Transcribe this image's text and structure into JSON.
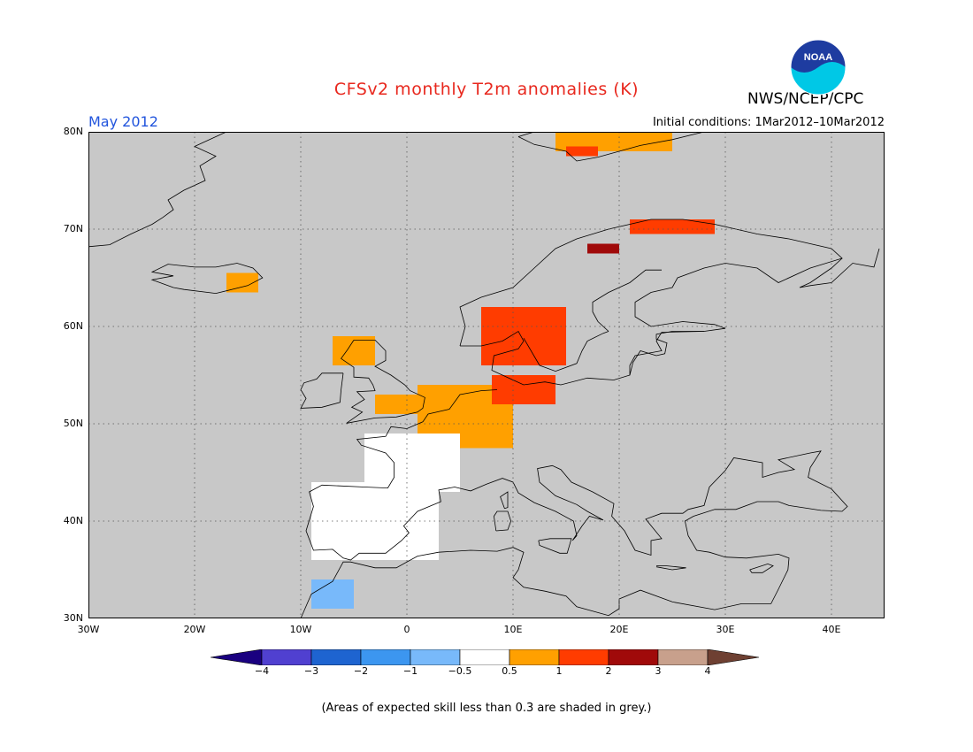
{
  "header": {
    "title": "CFSv2 monthly T2m anomalies (K)",
    "agency": "NWS/NCEP/CPC",
    "logo_text": "NOAA",
    "month": "May 2012",
    "initial_conditions": "Initial conditions: 1Mar2012–10Mar2012"
  },
  "colors": {
    "title": "#e8281e",
    "month": "#2255dd",
    "skill_grey": "#c8c8c8",
    "land_outline": "#000000"
  },
  "axes": {
    "lat_labels": [
      "80N",
      "70N",
      "60N",
      "50N",
      "40N",
      "30N"
    ],
    "lon_labels": [
      "30W",
      "20W",
      "10W",
      "0",
      "10E",
      "20E",
      "30E",
      "40E"
    ],
    "lon_range": [
      -30,
      45
    ],
    "lat_range": [
      30,
      80
    ],
    "grid": "dotted"
  },
  "colorbar": {
    "colors": [
      "#1a0080",
      "#5040d0",
      "#1e64d0",
      "#3c96f0",
      "#78b9fa",
      "#ffffff",
      "#ffa000",
      "#ff3c00",
      "#a00a0a",
      "#c8a08c",
      "#6e4032"
    ],
    "labels": [
      "−4",
      "−3",
      "−2",
      "−1",
      "−0.5",
      "0.5",
      "1",
      "2",
      "3",
      "4"
    ]
  },
  "footnote": "(Areas of expected skill less than 0.3 are shaded in grey.)",
  "anomaly_regions": [
    {
      "name": "svalbard",
      "category": "0.5-1",
      "lon": [
        14,
        25
      ],
      "lat": [
        78,
        80
      ]
    },
    {
      "name": "svalbard-south",
      "category": "1-2",
      "lon": [
        15,
        18
      ],
      "lat": [
        77.5,
        78.5
      ]
    },
    {
      "name": "iceland",
      "category": "0.5-1",
      "lon": [
        -17,
        -14
      ],
      "lat": [
        63.5,
        65.5
      ]
    },
    {
      "name": "north-norway-finnmark",
      "category": "1-2",
      "lon": [
        21,
        29
      ],
      "lat": [
        69.5,
        71
      ]
    },
    {
      "name": "lapland",
      "category": "2-3",
      "lon": [
        17,
        20
      ],
      "lat": [
        67.5,
        68.5
      ]
    },
    {
      "name": "scotland",
      "category": "0.5-1",
      "lon": [
        -7,
        -3
      ],
      "lat": [
        56,
        59
      ]
    },
    {
      "name": "england",
      "category": "0.5-1",
      "lon": [
        -3,
        2
      ],
      "lat": [
        51,
        53
      ]
    },
    {
      "name": "benelux-germany",
      "category": "0.5-1",
      "lon": [
        1,
        10
      ],
      "lat": [
        47.5,
        54
      ]
    },
    {
      "name": "sweden-south",
      "category": "1-2",
      "lon": [
        7,
        15
      ],
      "lat": [
        56,
        62
      ]
    },
    {
      "name": "baltic-coast",
      "category": "1-2",
      "lon": [
        8,
        14
      ],
      "lat": [
        52,
        55
      ]
    },
    {
      "name": "iberia",
      "category": "-0.5-0.5",
      "lon": [
        -9,
        3
      ],
      "lat": [
        36,
        44
      ]
    },
    {
      "name": "france-west",
      "category": "-0.5-0.5",
      "lon": [
        -4,
        5
      ],
      "lat": [
        43,
        49
      ]
    },
    {
      "name": "morocco",
      "category": "-1--0.5",
      "lon": [
        -9,
        -5
      ],
      "lat": [
        31,
        34
      ]
    }
  ]
}
